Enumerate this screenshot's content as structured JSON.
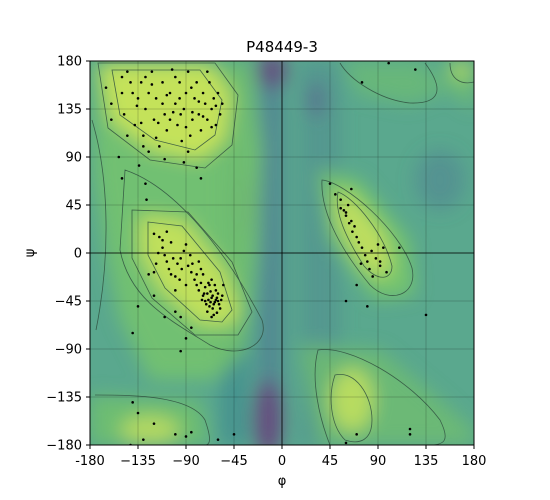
{
  "chart_data": {
    "type": "scatter",
    "title": "P48449-3",
    "xlabel": "φ",
    "ylabel": "ψ",
    "xlim": [
      -180,
      180
    ],
    "ylim": [
      -180,
      180
    ],
    "xticks": [
      "-180",
      "−135",
      "−90",
      "−45",
      "0",
      "45",
      "90",
      "135",
      "180"
    ],
    "yticks": [
      "−180",
      "−135",
      "−90",
      "−45",
      "0",
      "45",
      "90",
      "135",
      "180"
    ],
    "grid": true,
    "colors": {
      "points": "#000000",
      "favored": "#c6e558",
      "allowed": "#7fcd6a",
      "background": "#5bab8c",
      "disallowed": "#4a6f96",
      "sparse": "#6a3d7a",
      "contour": "#2f4f3f"
    },
    "points": [
      [
        -165,
        155
      ],
      [
        -160,
        140
      ],
      [
        -150,
        165
      ],
      [
        -148,
        130
      ],
      [
        -145,
        170
      ],
      [
        -140,
        150
      ],
      [
        -138,
        120
      ],
      [
        -135,
        145
      ],
      [
        -132,
        160
      ],
      [
        -130,
        110
      ],
      [
        -128,
        135
      ],
      [
        -125,
        150
      ],
      [
        -122,
        170
      ],
      [
        -120,
        125
      ],
      [
        -118,
        145
      ],
      [
        -115,
        100
      ],
      [
        -112,
        160
      ],
      [
        -110,
        130
      ],
      [
        -108,
        115
      ],
      [
        -105,
        150
      ],
      [
        -103,
        172
      ],
      [
        -100,
        140
      ],
      [
        -98,
        120
      ],
      [
        -96,
        160
      ],
      [
        -94,
        105
      ],
      [
        -92,
        135
      ],
      [
        -90,
        150
      ],
      [
        -88,
        170
      ],
      [
        -86,
        110
      ],
      [
        -84,
        125
      ],
      [
        -82,
        145
      ],
      [
        -80,
        160
      ],
      [
        -78,
        130
      ],
      [
        -76,
        115
      ],
      [
        -74,
        150
      ],
      [
        -72,
        140
      ],
      [
        -70,
        125
      ],
      [
        -68,
        160
      ],
      [
        -66,
        135
      ],
      [
        -64,
        145
      ],
      [
        -62,
        120
      ],
      [
        -60,
        150
      ],
      [
        -58,
        130
      ],
      [
        -56,
        140
      ],
      [
        -88,
        95
      ],
      [
        -92,
        85
      ],
      [
        -80,
        80
      ],
      [
        -76,
        70
      ],
      [
        -110,
        88
      ],
      [
        -125,
        95
      ],
      [
        -160,
        125
      ],
      [
        -145,
        110
      ],
      [
        -130,
        100
      ],
      [
        -150,
        150
      ],
      [
        -112,
        140
      ],
      [
        -100,
        165
      ],
      [
        -85,
        155
      ],
      [
        -70,
        170
      ],
      [
        -95,
        130
      ],
      [
        -105,
        125
      ],
      [
        -74,
        128
      ],
      [
        -66,
        118
      ],
      [
        -62,
        138
      ],
      [
        -78,
        142
      ],
      [
        -84,
        132
      ],
      [
        -90,
        118
      ],
      [
        -96,
        145
      ],
      [
        -102,
        132
      ],
      [
        -108,
        148
      ],
      [
        -116,
        122
      ],
      [
        -128,
        165
      ],
      [
        -136,
        138
      ],
      [
        -142,
        160
      ],
      [
        -118,
        108
      ],
      [
        -122,
        158
      ],
      [
        -132,
        122
      ],
      [
        -134,
        82
      ],
      [
        -150,
        70
      ],
      [
        -153,
        90
      ],
      [
        -128,
        65
      ],
      [
        -127,
        50
      ],
      [
        -120,
        18
      ],
      [
        -115,
        15
      ],
      [
        -112,
        5
      ],
      [
        -110,
        -2
      ],
      [
        -108,
        -8
      ],
      [
        -106,
        -15
      ],
      [
        -104,
        -20
      ],
      [
        -100,
        -22
      ],
      [
        -98,
        -10
      ],
      [
        -95,
        -5
      ],
      [
        -92,
        2
      ],
      [
        -90,
        8
      ],
      [
        -88,
        -12
      ],
      [
        -85,
        -18
      ],
      [
        -82,
        -25
      ],
      [
        -80,
        -30
      ],
      [
        -78,
        -35
      ],
      [
        -76,
        -28
      ],
      [
        -74,
        -40
      ],
      [
        -72,
        -45
      ],
      [
        -70,
        -38
      ],
      [
        -68,
        -50
      ],
      [
        -66,
        -42
      ],
      [
        -64,
        -48
      ],
      [
        -62,
        -35
      ],
      [
        -60,
        -45
      ],
      [
        -58,
        -52
      ],
      [
        -56,
        -40
      ],
      [
        -55,
        -30
      ],
      [
        -70,
        -55
      ],
      [
        -68,
        -30
      ],
      [
        -66,
        -25
      ],
      [
        -64,
        -58
      ],
      [
        -62,
        -44
      ],
      [
        -60,
        -38
      ],
      [
        -72,
        -32
      ],
      [
        -74,
        -20
      ],
      [
        -76,
        -15
      ],
      [
        -78,
        -8
      ],
      [
        -80,
        -20
      ],
      [
        -84,
        -10
      ],
      [
        -86,
        -2
      ],
      [
        -90,
        -30
      ],
      [
        -94,
        -15
      ],
      [
        -96,
        -25
      ],
      [
        -100,
        -35
      ],
      [
        -102,
        -5
      ],
      [
        -104,
        10
      ],
      [
        -108,
        20
      ],
      [
        -112,
        12
      ],
      [
        -116,
        0
      ],
      [
        -118,
        -10
      ],
      [
        -120,
        -18
      ],
      [
        -65,
        -40
      ],
      [
        -63,
        -46
      ],
      [
        -61,
        -42
      ],
      [
        -67,
        -36
      ],
      [
        -69,
        -44
      ],
      [
        -71,
        -48
      ],
      [
        -65,
        -52
      ],
      [
        -63,
        -30
      ],
      [
        -59,
        -48
      ],
      [
        -57,
        -44
      ],
      [
        -67,
        -46
      ],
      [
        -73,
        -38
      ],
      [
        -75,
        -44
      ],
      [
        -69,
        -28
      ],
      [
        -61,
        -56
      ],
      [
        -66,
        -60
      ],
      [
        -100,
        -55
      ],
      [
        -95,
        -60
      ],
      [
        -85,
        -70
      ],
      [
        -90,
        -80
      ],
      [
        -95,
        -92
      ],
      [
        -110,
        -60
      ],
      [
        -125,
        -20
      ],
      [
        -120,
        -40
      ],
      [
        -135,
        -50
      ],
      [
        -140,
        -75
      ],
      [
        45,
        65
      ],
      [
        50,
        55
      ],
      [
        55,
        50
      ],
      [
        58,
        40
      ],
      [
        60,
        35
      ],
      [
        62,
        45
      ],
      [
        65,
        30
      ],
      [
        68,
        25
      ],
      [
        70,
        15
      ],
      [
        72,
        10
      ],
      [
        75,
        5
      ],
      [
        78,
        -2
      ],
      [
        80,
        -8
      ],
      [
        82,
        -15
      ],
      [
        85,
        -22
      ],
      [
        88,
        -5
      ],
      [
        90,
        8
      ],
      [
        92,
        -12
      ],
      [
        95,
        5
      ],
      [
        98,
        -18
      ],
      [
        55,
        42
      ],
      [
        60,
        38
      ],
      [
        63,
        28
      ],
      [
        66,
        20
      ],
      [
        74,
        -10
      ],
      [
        84,
        2
      ],
      [
        92,
        -8
      ],
      [
        110,
        5
      ],
      [
        65,
        60
      ],
      [
        70,
        -30
      ],
      [
        60,
        -45
      ],
      [
        80,
        -50
      ],
      [
        75,
        160
      ],
      [
        100,
        178
      ],
      [
        120,
        -165
      ],
      [
        135,
        -58
      ],
      [
        -140,
        -140
      ],
      [
        -135,
        -150
      ],
      [
        -120,
        -160
      ],
      [
        -100,
        -170
      ],
      [
        -90,
        -172
      ],
      [
        -85,
        -168
      ],
      [
        -130,
        -175
      ],
      [
        -60,
        -175
      ],
      [
        -45,
        -170
      ],
      [
        -142,
        -180
      ],
      [
        125,
        172
      ],
      [
        120,
        -170
      ],
      [
        60,
        -178
      ],
      [
        70,
        -170
      ]
    ]
  }
}
